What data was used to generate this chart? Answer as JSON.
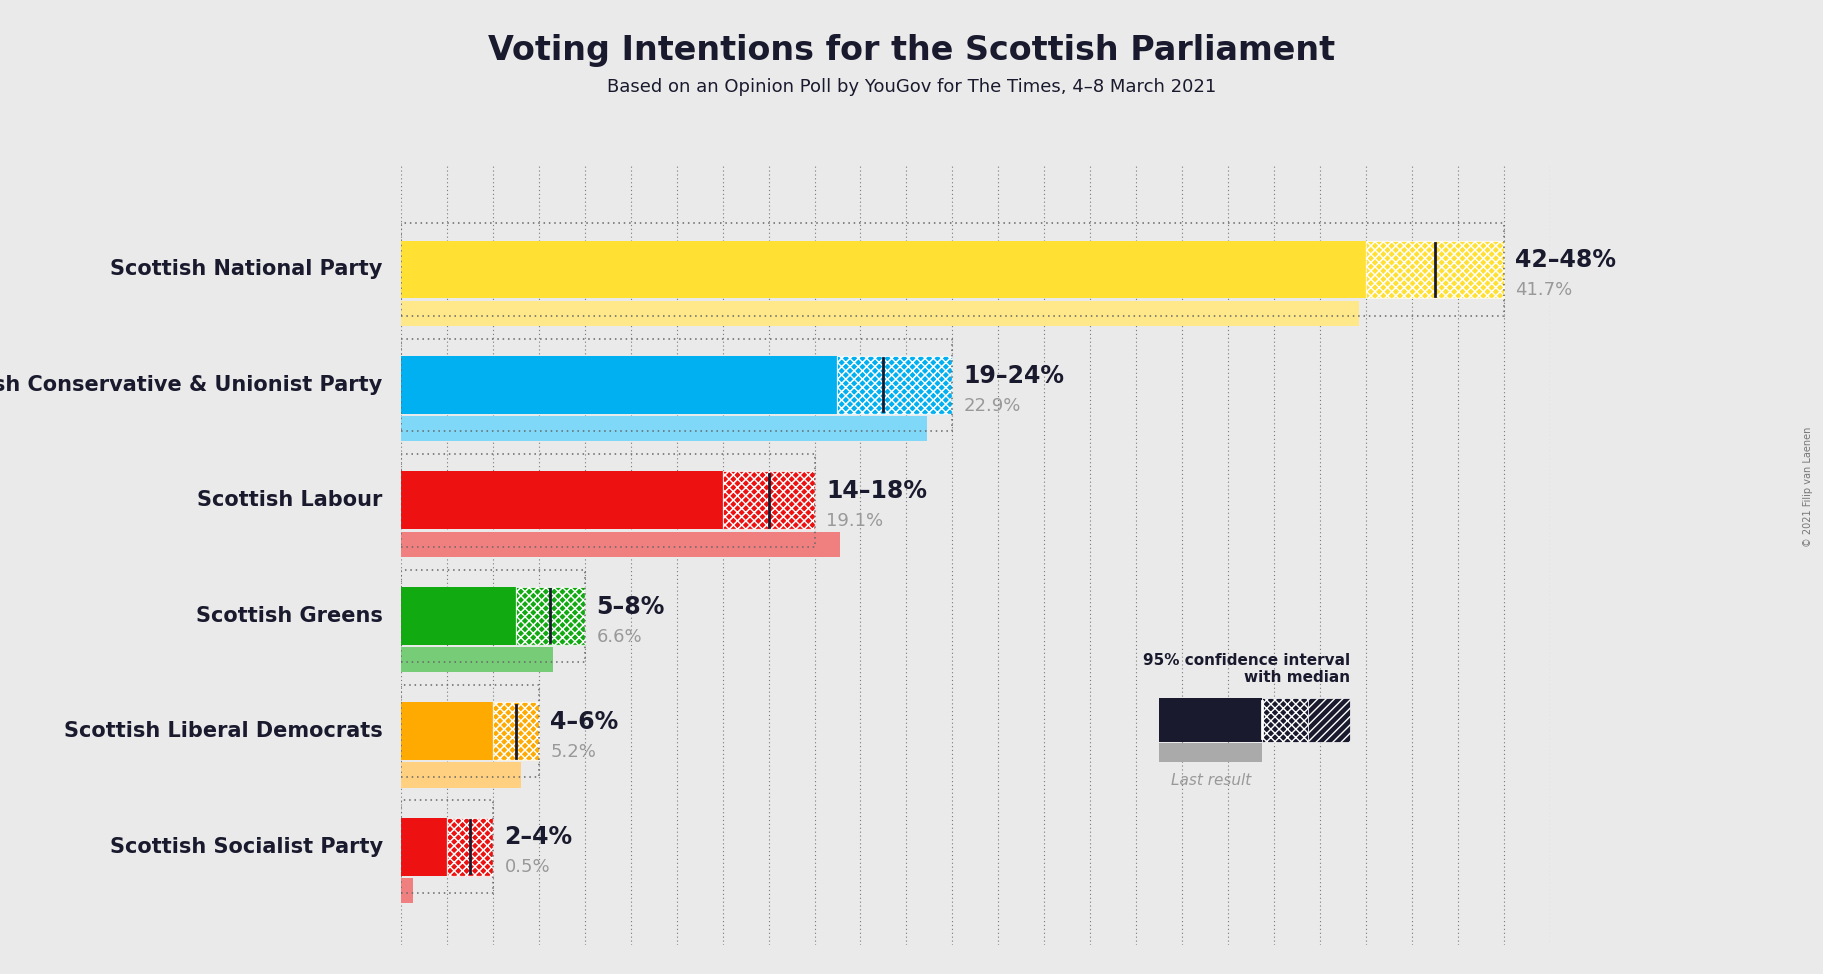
{
  "title": "Voting Intentions for the Scottish Parliament",
  "subtitle": "Based on an Opinion Poll by YouGov for The Times, 4–8 March 2021",
  "copyright": "© 2021 Filip van Laenen",
  "background_color": "#eaeaea",
  "parties": [
    {
      "name": "Scottish National Party",
      "ci_low": 42,
      "ci_high": 48,
      "median": 45,
      "last_result": 41.7,
      "label": "42–48%",
      "last_label": "41.7%",
      "color": "#FFE033",
      "faded_color": "#FFE88A"
    },
    {
      "name": "Scottish Conservative & Unionist Party",
      "ci_low": 19,
      "ci_high": 24,
      "median": 21,
      "last_result": 22.9,
      "label": "19–24%",
      "last_label": "22.9%",
      "color": "#00B0F0",
      "faded_color": "#80D8F8"
    },
    {
      "name": "Scottish Labour",
      "ci_low": 14,
      "ci_high": 18,
      "median": 16,
      "last_result": 19.1,
      "label": "14–18%",
      "last_label": "19.1%",
      "color": "#EE1111",
      "faded_color": "#F08080"
    },
    {
      "name": "Scottish Greens",
      "ci_low": 5,
      "ci_high": 8,
      "median": 6.5,
      "last_result": 6.6,
      "label": "5–8%",
      "last_label": "6.6%",
      "color": "#11AA11",
      "faded_color": "#77CC77"
    },
    {
      "name": "Scottish Liberal Democrats",
      "ci_low": 4,
      "ci_high": 6,
      "median": 5,
      "last_result": 5.2,
      "label": "4–6%",
      "last_label": "5.2%",
      "color": "#FFAA00",
      "faded_color": "#FFD080"
    },
    {
      "name": "Scottish Socialist Party",
      "ci_low": 2,
      "ci_high": 4,
      "median": 3,
      "last_result": 0.5,
      "label": "2–4%",
      "last_label": "0.5%",
      "color": "#EE1111",
      "faded_color": "#F08080"
    }
  ],
  "xlim_max": 50,
  "bar_height": 0.5,
  "last_bar_height": 0.22,
  "dot_extra": 0.3,
  "title_fontsize": 24,
  "subtitle_fontsize": 13,
  "label_fontsize": 17,
  "last_label_fontsize": 13,
  "party_fontsize": 15,
  "text_color": "#1a1a2e",
  "gray_text": "#999999",
  "dark_color": "#1a1a2e",
  "grid_color": "#666666"
}
